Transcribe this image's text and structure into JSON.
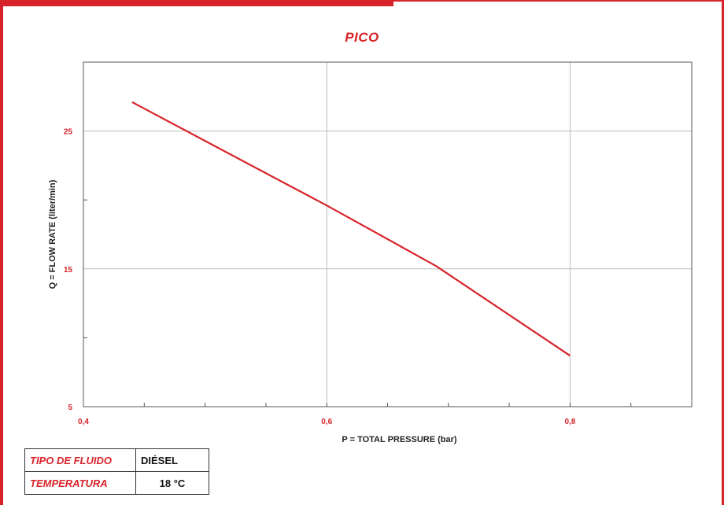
{
  "colors": {
    "accent": "#d8232a",
    "grid": "#bdbdbd",
    "text": "#222222"
  },
  "chart_data": {
    "type": "line",
    "title": "PICO",
    "xlabel": "P = TOTAL PRESSURE (bar)",
    "ylabel": "Q = FLOW RATE (liter/min)",
    "xlim": [
      0.4,
      0.9
    ],
    "ylim": [
      5,
      30
    ],
    "x_ticks": [
      0.4,
      0.6,
      0.8
    ],
    "x_tick_labels": [
      "0,4",
      "0,6",
      "0,8"
    ],
    "y_ticks": [
      5,
      15,
      25
    ],
    "y_tick_labels": [
      "5",
      "15",
      "25"
    ],
    "grid": true,
    "series": [
      {
        "color": "#d8232a",
        "x": [
          0.44,
          0.6,
          0.69,
          0.8
        ],
        "y": [
          27.1,
          19.6,
          15.2,
          8.7
        ]
      }
    ]
  },
  "info_table": {
    "rows": [
      {
        "key": "TIPO DE FLUIDO",
        "value": "DIÉSEL"
      },
      {
        "key": "TEMPERATURA",
        "value": "18 °C"
      }
    ]
  }
}
